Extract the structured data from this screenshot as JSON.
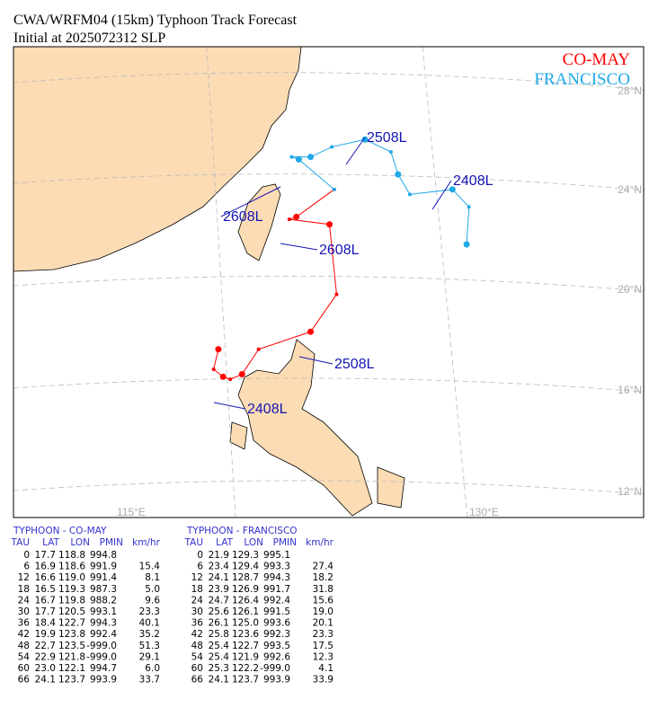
{
  "header": {
    "title": "CWA/WRFM04 (15km) Typhoon Track Forecast",
    "subtitle": "Initial at 2025072312  SLP"
  },
  "legend": [
    {
      "name": "CO-MAY",
      "color": "#ff0000"
    },
    {
      "name": "FRANCISCO",
      "color": "#1ea8e6"
    }
  ],
  "map": {
    "lat_labels": [
      "28°N",
      "24°N",
      "20°N",
      "16°N",
      "12°N"
    ],
    "lon_labels": [
      "115°E",
      "130°E"
    ]
  },
  "tables": [
    {
      "title": "TYPHOON  -  CO-MAY",
      "track_labels": [
        "2608L",
        "2508L",
        "2408L"
      ],
      "columns": [
        "TAU",
        "LAT",
        "LON",
        "PMIN",
        "km/hr"
      ],
      "rows": [
        [
          "0",
          "17.7",
          "118.8",
          "994.8"
        ],
        [
          "6",
          "16.9",
          "118.6",
          "991.9",
          "15.4"
        ],
        [
          "12",
          "16.6",
          "119.0",
          "991.4",
          "8.1"
        ],
        [
          "18",
          "16.5",
          "119.3",
          "987.3",
          "5.0"
        ],
        [
          "24",
          "16.7",
          "119.8",
          "988.2",
          "9.6"
        ],
        [
          "30",
          "17.7",
          "120.5",
          "993.1",
          "23.3"
        ],
        [
          "36",
          "18.4",
          "122.7",
          "994.3",
          "40.1"
        ],
        [
          "42",
          "19.9",
          "123.8",
          "992.4",
          "35.2"
        ],
        [
          "48",
          "22.7",
          "123.5",
          "-999.0",
          "51.3"
        ],
        [
          "54",
          "22.9",
          "121.8",
          "-999.0",
          "29.1"
        ],
        [
          "60",
          "23.0",
          "122.1",
          "994.7",
          "6.0"
        ],
        [
          "66",
          "24.1",
          "123.7",
          "993.9",
          "33.7"
        ]
      ]
    },
    {
      "title": "TYPHOON  -  FRANCISCO",
      "track_labels": [
        "2508L",
        "2408L",
        "2608L"
      ],
      "columns": [
        "TAU",
        "LAT",
        "LON",
        "PMIN",
        "km/hr"
      ],
      "rows": [
        [
          "0",
          "21.9",
          "129.3",
          "995.1"
        ],
        [
          "6",
          "23.4",
          "129.4",
          "993.3",
          "27.4"
        ],
        [
          "12",
          "24.1",
          "128.7",
          "994.3",
          "18.2"
        ],
        [
          "18",
          "23.9",
          "126.9",
          "991.7",
          "31.8"
        ],
        [
          "24",
          "24.7",
          "126.4",
          "992.4",
          "15.6"
        ],
        [
          "30",
          "25.6",
          "126.1",
          "991.5",
          "19.0"
        ],
        [
          "36",
          "26.1",
          "125.0",
          "993.6",
          "20.1"
        ],
        [
          "42",
          "25.8",
          "123.6",
          "992.3",
          "23.3"
        ],
        [
          "48",
          "25.4",
          "122.7",
          "993.5",
          "17.5"
        ],
        [
          "54",
          "25.4",
          "121.9",
          "992.6",
          "12.3"
        ],
        [
          "60",
          "25.3",
          "122.2",
          "-999.0",
          "4.1"
        ],
        [
          "66",
          "24.1",
          "123.7",
          "993.9",
          "33.9"
        ]
      ]
    }
  ]
}
